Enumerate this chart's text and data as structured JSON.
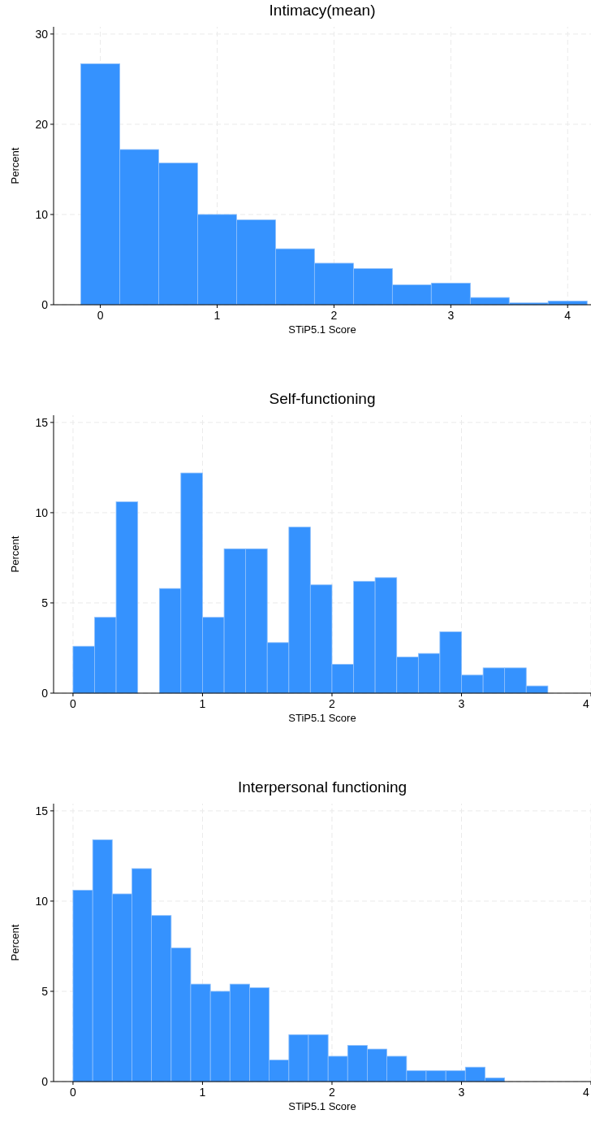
{
  "chart_data": [
    {
      "type": "histogram",
      "title": "Intimacy(mean)",
      "xlabel": "STiP5.1 Score",
      "ylabel": "Percent",
      "color": "#3592fe",
      "grid": true,
      "bins": [
        -0.167,
        0.167,
        0.5,
        0.833,
        1.167,
        1.5,
        1.833,
        2.167,
        2.5,
        2.833,
        3.167,
        3.5,
        3.833,
        4.167
      ],
      "values": [
        26.7,
        17.2,
        15.7,
        10,
        9.4,
        6.2,
        4.6,
        4.0,
        2.2,
        2.4,
        0.8,
        0.2,
        0.4
      ],
      "xlim": [
        -0.4,
        4.2
      ],
      "xticks": [
        0,
        1,
        2,
        3,
        4
      ],
      "ylim": [
        0,
        30.8
      ],
      "yticks": [
        0,
        10,
        20,
        30
      ]
    },
    {
      "type": "histogram",
      "title": "Self-functioning",
      "xlabel": "STiP5.1 Score",
      "ylabel": "Percent",
      "color": "#3592fe",
      "grid": true,
      "bins": [
        0,
        0.167,
        0.333,
        0.5,
        0.667,
        0.833,
        1,
        1.167,
        1.333,
        1.5,
        1.667,
        1.833,
        2,
        2.167,
        2.333,
        2.5,
        2.667,
        2.833,
        3,
        3.167,
        3.333,
        3.5,
        3.667
      ],
      "values": [
        2.6,
        4.2,
        10.6,
        0,
        5.8,
        12.2,
        4.2,
        8.0,
        8.0,
        2.8,
        9.2,
        6.0,
        1.6,
        6.2,
        6.4,
        2.0,
        2.2,
        3.4,
        1.0,
        1.4,
        1.4,
        0.4
      ],
      "xlim": [
        -0.15,
        4.0
      ],
      "xticks": [
        0,
        1,
        2,
        3,
        4
      ],
      "ylim": [
        0,
        15.4
      ],
      "yticks": [
        0,
        5,
        10,
        15
      ]
    },
    {
      "type": "histogram",
      "title": "Interpersonal functioning",
      "xlabel": "STiP5.1 Score",
      "ylabel": "Percent",
      "color": "#3592fe",
      "grid": true,
      "bins": [
        0,
        0.152,
        0.303,
        0.455,
        0.606,
        0.758,
        0.909,
        1.061,
        1.212,
        1.364,
        1.515,
        1.667,
        1.818,
        1.97,
        2.121,
        2.273,
        2.424,
        2.576,
        2.727,
        2.879,
        3.03,
        3.182,
        3.333
      ],
      "values": [
        10.6,
        13.4,
        10.4,
        11.8,
        9.2,
        7.4,
        5.4,
        5.0,
        5.4,
        5.2,
        1.2,
        2.6,
        2.6,
        1.4,
        2.0,
        1.8,
        1.4,
        0.6,
        0.6,
        0.6,
        0.8,
        0.2
      ],
      "xlim": [
        -0.15,
        4.0
      ],
      "xticks": [
        0,
        1,
        2,
        3,
        4
      ],
      "ylim": [
        0,
        15.4
      ],
      "yticks": [
        0,
        5,
        10,
        15
      ]
    }
  ]
}
